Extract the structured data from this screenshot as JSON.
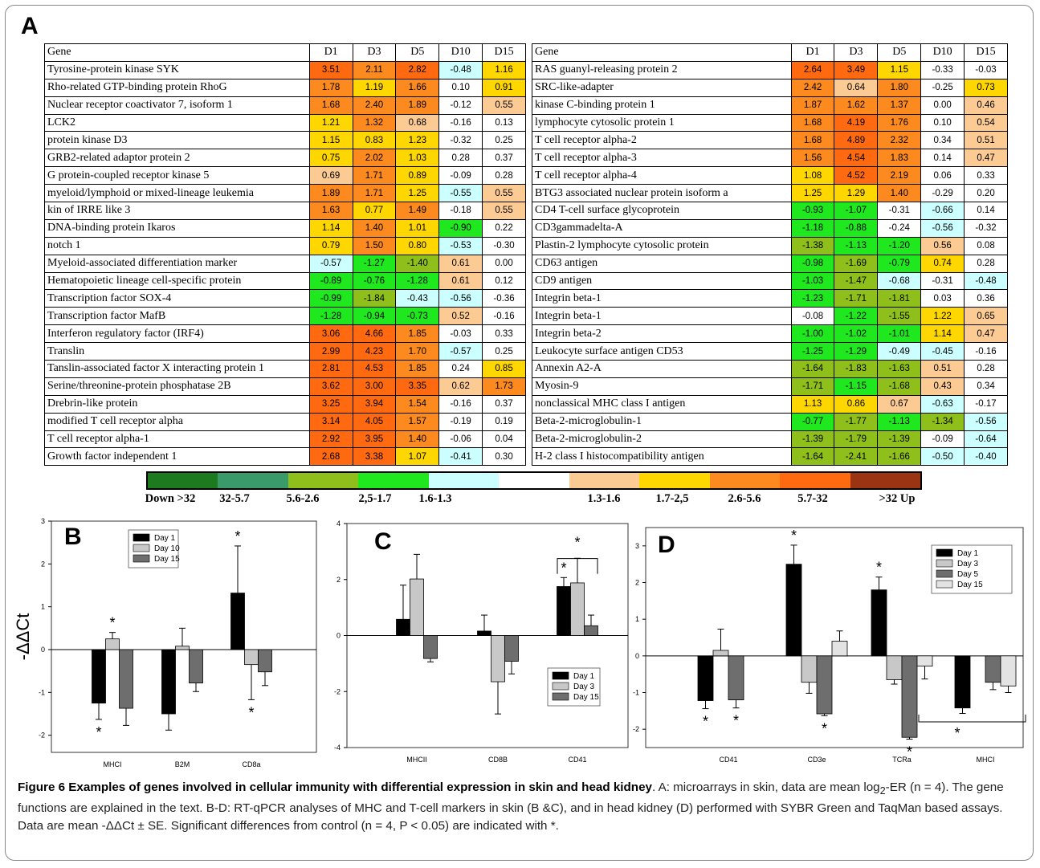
{
  "panel_a": {
    "letter": "A",
    "headers": [
      "Gene",
      "D1",
      "D3",
      "D5",
      "D10",
      "D15"
    ],
    "left_rows": [
      {
        "gene": "Tyrosine-protein kinase SYK",
        "v": [
          3.51,
          2.11,
          2.82,
          -0.48,
          1.16
        ]
      },
      {
        "gene": "Rho-related GTP-binding protein RhoG",
        "v": [
          1.78,
          1.19,
          1.66,
          0.1,
          0.91
        ]
      },
      {
        "gene": "Nuclear receptor coactivator 7, isoform 1",
        "v": [
          1.68,
          2.4,
          1.89,
          -0.12,
          0.55
        ]
      },
      {
        "gene": "LCK2",
        "v": [
          1.21,
          1.32,
          0.68,
          -0.16,
          0.13
        ]
      },
      {
        "gene": "protein kinase D3",
        "v": [
          1.15,
          0.83,
          1.23,
          -0.32,
          0.25
        ]
      },
      {
        "gene": "GRB2-related adaptor protein 2",
        "v": [
          0.75,
          2.02,
          1.03,
          0.28,
          0.37
        ]
      },
      {
        "gene": "G protein-coupled receptor kinase 5",
        "v": [
          0.69,
          1.71,
          0.89,
          -0.09,
          0.28
        ]
      },
      {
        "gene": "myeloid/lymphoid or mixed-lineage leukemia",
        "v": [
          1.89,
          1.71,
          1.25,
          -0.55,
          0.55
        ]
      },
      {
        "gene": "kin of IRRE like 3",
        "v": [
          1.63,
          0.77,
          1.49,
          -0.18,
          0.55
        ]
      },
      {
        "gene": "DNA-binding protein Ikaros",
        "v": [
          1.14,
          1.4,
          1.01,
          -0.9,
          0.22
        ]
      },
      {
        "gene": "notch 1",
        "v": [
          0.79,
          1.5,
          0.8,
          -0.53,
          -0.3
        ]
      },
      {
        "gene": "Myeloid-associated differentiation marker",
        "v": [
          -0.57,
          -1.27,
          -1.4,
          0.61,
          0.0
        ]
      },
      {
        "gene": "Hematopoietic lineage cell-specific protein",
        "v": [
          -0.89,
          -0.76,
          -1.28,
          0.61,
          0.12
        ]
      },
      {
        "gene": "Transcription factor SOX-4",
        "v": [
          -0.99,
          -1.84,
          -0.43,
          -0.56,
          -0.36
        ]
      },
      {
        "gene": "Transcription factor MafB",
        "v": [
          -1.28,
          -0.94,
          -0.73,
          0.52,
          -0.16
        ]
      },
      {
        "gene": "Interferon regulatory factor (IRF4)",
        "v": [
          3.06,
          4.66,
          1.85,
          -0.03,
          0.33
        ]
      },
      {
        "gene": "Translin",
        "v": [
          2.99,
          4.23,
          1.7,
          -0.57,
          0.25
        ]
      },
      {
        "gene": "Tanslin-associated factor X interacting protein 1",
        "v": [
          2.81,
          4.53,
          1.85,
          0.24,
          0.85
        ]
      },
      {
        "gene": "Serine/threonine-protein phosphatase 2B",
        "v": [
          3.62,
          3.0,
          3.35,
          0.62,
          1.73
        ]
      },
      {
        "gene": "Drebrin-like protein",
        "v": [
          3.25,
          3.94,
          1.54,
          -0.16,
          0.37
        ]
      },
      {
        "gene": "modified T cell receptor alpha",
        "v": [
          3.14,
          4.05,
          1.57,
          -0.19,
          0.19
        ]
      },
      {
        "gene": "T cell receptor alpha-1",
        "v": [
          2.92,
          3.95,
          1.4,
          -0.06,
          0.04
        ]
      },
      {
        "gene": "Growth factor independent 1",
        "v": [
          2.68,
          3.38,
          1.07,
          -0.41,
          0.3
        ]
      }
    ],
    "right_rows": [
      {
        "gene": "RAS guanyl-releasing protein 2",
        "v": [
          2.64,
          3.49,
          1.15,
          -0.33,
          -0.03
        ]
      },
      {
        "gene": "SRC-like-adapter",
        "v": [
          2.42,
          0.64,
          1.8,
          -0.25,
          0.73
        ]
      },
      {
        "gene": "kinase C-binding protein 1",
        "v": [
          1.87,
          1.62,
          1.37,
          0.0,
          0.46
        ]
      },
      {
        "gene": "lymphocyte cytosolic protein 1",
        "v": [
          1.68,
          4.19,
          1.76,
          0.1,
          0.54
        ]
      },
      {
        "gene": "T cell receptor alpha-2",
        "v": [
          1.68,
          4.89,
          2.32,
          0.34,
          0.51
        ]
      },
      {
        "gene": "T cell receptor alpha-3",
        "v": [
          1.56,
          4.54,
          1.83,
          0.14,
          0.47
        ]
      },
      {
        "gene": "T cell receptor alpha-4",
        "v": [
          1.08,
          4.52,
          2.19,
          0.06,
          0.33
        ]
      },
      {
        "gene": "BTG3 associated nuclear protein isoform a",
        "v": [
          1.25,
          1.29,
          1.4,
          -0.29,
          0.2
        ]
      },
      {
        "gene": "CD4 T-cell surface glycoprotein",
        "v": [
          -0.93,
          -1.07,
          -0.31,
          -0.66,
          0.14
        ]
      },
      {
        "gene": "CD3gammadelta-A",
        "v": [
          -1.18,
          -0.88,
          -0.24,
          -0.56,
          -0.32
        ]
      },
      {
        "gene": "Plastin-2 lymphocyte cytosolic protein",
        "v": [
          -1.38,
          -1.13,
          -1.2,
          0.56,
          0.08
        ]
      },
      {
        "gene": "CD63 antigen",
        "v": [
          -0.98,
          -1.69,
          -0.79,
          0.74,
          0.28
        ]
      },
      {
        "gene": "CD9 antigen",
        "v": [
          -1.03,
          -1.47,
          -0.68,
          -0.31,
          -0.48
        ]
      },
      {
        "gene": "Integrin beta-1",
        "v": [
          -1.23,
          -1.71,
          -1.81,
          0.03,
          0.36
        ]
      },
      {
        "gene": "Integrin beta-1",
        "v": [
          -0.08,
          -1.22,
          -1.55,
          1.22,
          0.65
        ]
      },
      {
        "gene": "Integrin beta-2",
        "v": [
          -1.0,
          -1.02,
          -1.01,
          1.14,
          0.47
        ]
      },
      {
        "gene": "Leukocyte surface antigen CD53",
        "v": [
          -1.25,
          -1.29,
          -0.49,
          -0.45,
          -0.16
        ]
      },
      {
        "gene": "Annexin A2-A",
        "v": [
          -1.64,
          -1.83,
          -1.63,
          0.51,
          0.28
        ]
      },
      {
        "gene": "Myosin-9",
        "v": [
          -1.71,
          -1.15,
          -1.68,
          0.43,
          0.34
        ]
      },
      {
        "gene": "nonclassical MHC class I antigen",
        "v": [
          1.13,
          0.86,
          0.67,
          -0.63,
          -0.17
        ]
      },
      {
        "gene": "Beta-2-microglobulin-1",
        "v": [
          -0.77,
          -1.77,
          -1.13,
          -1.34,
          -0.56
        ]
      },
      {
        "gene": "Beta-2-microglobulin-2",
        "v": [
          -1.39,
          -1.79,
          -1.39,
          -0.09,
          -0.64
        ]
      },
      {
        "gene": "H-2 class I histocompatibility antigen",
        "v": [
          -1.64,
          -2.41,
          -1.66,
          -0.5,
          -0.4
        ]
      }
    ]
  },
  "color_scale": {
    "colors": [
      "#1e7a1e",
      "#3a9a6a",
      "#8fbf1a",
      "#1fe81f",
      "#ccffff",
      "#ffffff",
      "#fbcb93",
      "#ffd700",
      "#fc8a1e",
      "#ff6a10",
      "#9b3412"
    ],
    "labels": [
      "Down >32",
      "32-5.7",
      "5.6-2.6",
      "2,5-1.7",
      "1.6-1.3",
      "1.3-1.6",
      "1.7-2,5",
      "2.6-5.6",
      "5.7-32",
      ">32 Up"
    ]
  },
  "chart_data": [
    {
      "panel": "B",
      "type": "bar",
      "categories": [
        "MHCI",
        "B2M",
        "CD8a"
      ],
      "ylabel": "-ΔΔCt",
      "ylim": [
        -2.4,
        3
      ],
      "yticks": [
        -2,
        -1,
        0,
        1,
        2,
        3
      ],
      "legend_position": "top-left",
      "series": [
        {
          "name": "Day 1",
          "color": "#000000",
          "values": [
            -1.25,
            -1.5,
            1.32
          ],
          "errors": [
            0.38,
            0.38,
            1.1
          ]
        },
        {
          "name": "Day 10",
          "color": "#c8c8c8",
          "values": [
            0.25,
            0.08,
            -0.35
          ],
          "errors": [
            0.15,
            0.42,
            0.82
          ]
        },
        {
          "name": "Day 15",
          "color": "#6e6e6e",
          "values": [
            -1.37,
            -0.78,
            -0.52
          ],
          "errors": [
            0.4,
            0.2,
            0.32
          ]
        }
      ],
      "significance": [
        [
          true,
          false,
          true
        ],
        [
          true,
          false,
          true
        ],
        [
          false,
          false,
          false
        ]
      ],
      "star": "*"
    },
    {
      "panel": "C",
      "type": "bar",
      "categories": [
        "MHCII",
        "CD8B",
        "CD41"
      ],
      "ylim": [
        -4,
        4
      ],
      "yticks": [
        -4,
        -2,
        0,
        2,
        4
      ],
      "legend_position": "bottom-right",
      "series": [
        {
          "name": "Day 1",
          "color": "#000000",
          "values": [
            0.58,
            0.16,
            1.75
          ],
          "errors": [
            1.22,
            0.57,
            0.32
          ]
        },
        {
          "name": "Day 3",
          "color": "#c8c8c8",
          "values": [
            2.02,
            -1.65,
            1.88
          ],
          "errors": [
            0.88,
            1.15,
            0.88
          ]
        },
        {
          "name": "Day 15",
          "color": "#6e6e6e",
          "values": [
            -0.82,
            -0.92,
            0.35
          ],
          "errors": [
            0.12,
            0.45,
            0.38
          ]
        }
      ],
      "significance": [
        [
          false,
          false,
          true
        ],
        [
          false,
          false,
          false
        ],
        [
          false,
          false,
          false
        ]
      ],
      "star": "*"
    },
    {
      "panel": "D",
      "type": "bar",
      "categories": [
        "CD41",
        "CD3e",
        "TCRa",
        "MHCI"
      ],
      "ylim": [
        -2.5,
        3.5
      ],
      "yticks": [
        -2,
        -1,
        0,
        1,
        2,
        3
      ],
      "legend_position": "top-right",
      "series": [
        {
          "name": "Day 1",
          "color": "#000000",
          "values": [
            -1.22,
            2.5,
            1.8,
            -1.42
          ],
          "errors": [
            0.22,
            0.52,
            0.35,
            0.15
          ]
        },
        {
          "name": "Day 3",
          "color": "#c8c8c8",
          "values": [
            0.15,
            -0.72,
            -0.65,
            0
          ],
          "errors": [
            0.58,
            0.3,
            0.12,
            0
          ]
        },
        {
          "name": "Day 5",
          "color": "#6e6e6e",
          "values": [
            -1.2,
            -1.58,
            -2.22,
            -0.72
          ],
          "errors": [
            0.22,
            0.05,
            0.05,
            0.2
          ]
        },
        {
          "name": "Day 15",
          "color": "#e3e3e3",
          "values": [
            0,
            0.4,
            -0.28,
            -0.82
          ],
          "errors": [
            0,
            0.28,
            0.35,
            0.18
          ]
        }
      ],
      "significance": [
        [
          true,
          true,
          true,
          false
        ],
        [
          false,
          false,
          false,
          false
        ],
        [
          true,
          true,
          true,
          false
        ],
        [
          false,
          false,
          false,
          false
        ]
      ],
      "star": "*"
    }
  ],
  "caption": {
    "title": "Figure 6 Examples of genes involved in cellular immunity with differential expression in skin and head kidney",
    "p1": ". A: microarrays in skin, data are mean log",
    "sub": "2",
    "p2": "-ER (n = 4). The gene functions are explained in the text. B-D: RT-qPCR analyses of MHC and T-cell markers in skin (B &C), and in head kidney (D) performed with SYBR Green and TaqMan based assays. Data are mean -ΔΔCt ± SE. Significant differences from control (n = 4, P < 0.05) are indicated with *."
  }
}
